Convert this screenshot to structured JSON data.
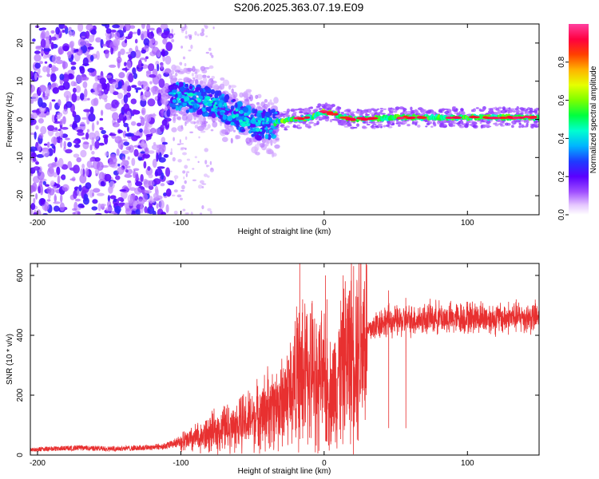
{
  "title": "S206.2025.363.07.19.E09",
  "colors": {
    "snr_line": "#e83030",
    "frame": "#000000",
    "background": "#ffffff"
  },
  "chart_data": [
    {
      "type": "heatmap",
      "name": "spectrogram",
      "xlabel": "Height of straight line (km)",
      "ylabel": "Frequency (Hz)",
      "xlim": [
        -205,
        150
      ],
      "ylim": [
        -25,
        25
      ],
      "xticks": [
        -200,
        -100,
        0,
        100
      ],
      "xtick_labels": [
        "-200",
        "-100",
        "0",
        "100"
      ],
      "yticks": [
        -20,
        -10,
        0,
        10,
        20
      ],
      "ytick_labels": [
        "-20",
        "-10",
        "0",
        "10",
        "20"
      ],
      "colorbar": {
        "label": "Normalized spectral amplitude",
        "range": [
          0.0,
          1.0
        ],
        "ticks": [
          0.0,
          0.2,
          0.4,
          0.6,
          0.8
        ],
        "tick_labels": [
          "0.0",
          "0.2",
          "0.4",
          "0.6",
          "0.8"
        ],
        "colormap": "rainbow (violet-blue-cyan-green-yellow-red-pink)"
      },
      "regions": [
        {
          "x_from": -205,
          "x_to": -107,
          "description": "broadband noise, amplitude ~0.1-0.25",
          "freq_range": [
            -25,
            25
          ]
        },
        {
          "x_from": -107,
          "x_to": -35,
          "description": "drifting signal from ~+5 Hz down to ~-3 Hz, amplitude ~0.2-0.5"
        },
        {
          "x_from": -35,
          "x_to": 150,
          "description": "stable tone near 0 Hz, amplitude ~0.5-1.0"
        }
      ],
      "signal_track": [
        {
          "x": -105,
          "f": 6
        },
        {
          "x": -95,
          "f": 5.5
        },
        {
          "x": -85,
          "f": 5
        },
        {
          "x": -75,
          "f": 4
        },
        {
          "x": -65,
          "f": 2
        },
        {
          "x": -55,
          "f": 0
        },
        {
          "x": -45,
          "f": -1.5
        },
        {
          "x": -35,
          "f": -1
        },
        {
          "x": -25,
          "f": 0
        },
        {
          "x": -10,
          "f": 0.5
        },
        {
          "x": 0,
          "f": 2
        },
        {
          "x": 10,
          "f": 1
        },
        {
          "x": 20,
          "f": 0
        },
        {
          "x": 50,
          "f": 0.5
        },
        {
          "x": 80,
          "f": 0.5
        },
        {
          "x": 110,
          "f": 0.5
        },
        {
          "x": 150,
          "f": 0.5
        }
      ]
    },
    {
      "type": "line",
      "name": "snr",
      "xlabel": "Height of straight line (km)",
      "ylabel": "SNR (10 * v/v)",
      "xlim": [
        -205,
        150
      ],
      "ylim": [
        0,
        640
      ],
      "xticks": [
        -200,
        -100,
        0,
        100
      ],
      "xtick_labels": [
        "-200",
        "-100",
        "0",
        "100"
      ],
      "yticks": [
        0,
        200,
        400,
        600
      ],
      "ytick_labels": [
        "0",
        "200",
        "400",
        "600"
      ],
      "series": [
        {
          "name": "SNR",
          "x": [
            -205,
            -190,
            -170,
            -150,
            -130,
            -110,
            -100,
            -90,
            -80,
            -70,
            -60,
            -50,
            -40,
            -30,
            -25,
            -20,
            -15,
            -10,
            -5,
            0,
            5,
            10,
            15,
            20,
            25,
            30,
            35,
            40,
            45,
            50,
            60,
            70,
            80,
            90,
            100,
            110,
            120,
            130,
            140,
            150
          ],
          "y": [
            15,
            18,
            20,
            18,
            20,
            25,
            40,
            55,
            70,
            90,
            100,
            120,
            150,
            175,
            210,
            250,
            280,
            275,
            270,
            240,
            200,
            280,
            320,
            360,
            390,
            410,
            430,
            445,
            450,
            445,
            450,
            455,
            460,
            455,
            460,
            460,
            455,
            460,
            460,
            460
          ]
        }
      ],
      "spikes": [
        {
          "x": -17,
          "y": 640
        },
        {
          "x": -15,
          "y": 520
        },
        {
          "x": 1,
          "y": 600
        },
        {
          "x": 2,
          "y": 520
        },
        {
          "x": 45,
          "y": 550
        },
        {
          "x": 57,
          "y": 525
        }
      ]
    }
  ]
}
